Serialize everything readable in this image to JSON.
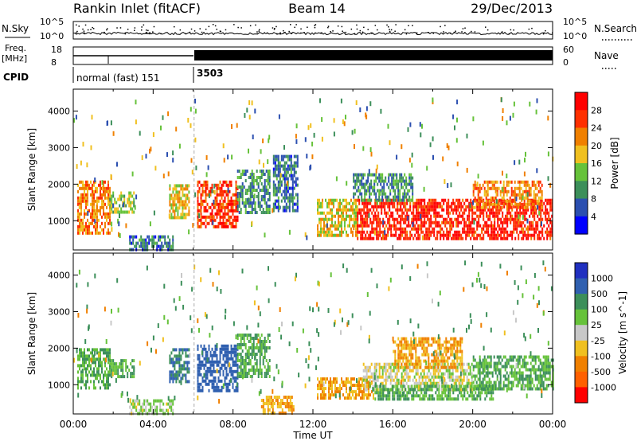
{
  "header": {
    "station": "Rankin Inlet (fitACF)",
    "beam": "Beam 14",
    "date": "29/Dec/2013"
  },
  "strip_panels": {
    "noise": {
      "left_label": "N.Sky",
      "right_label": "N.Search",
      "left_ticks": [
        "10^5",
        "10^0"
      ],
      "right_ticks": [
        "10^5",
        "10^0"
      ]
    },
    "frequency": {
      "left_label_line1": "Freq.",
      "left_label_line2": "[MHz]",
      "right_label": "Nave",
      "left_ticks": [
        "18",
        "8"
      ],
      "right_ticks": [
        "60",
        "0"
      ]
    },
    "cpid": {
      "label": "CPID",
      "modes": [
        {
          "name": "normal (fast) 151",
          "start_hour": 0,
          "end_hour": 6.05
        },
        {
          "name": "3503",
          "start_hour": 6.05,
          "end_hour": 24
        }
      ]
    }
  },
  "colors": {
    "power_scale": [
      "#0000ff",
      "#2b4fb0",
      "#3c8f5a",
      "#66c23a",
      "#f0c020",
      "#f08000",
      "#ff3000",
      "#ff0000"
    ],
    "velocity_scale": [
      "#2030c0",
      "#3060b0",
      "#3c8f5a",
      "#66c23a",
      "#c8c8c8",
      "#f0c020",
      "#f08000",
      "#ff6000",
      "#ff0000"
    ],
    "ground_scatter": "#c8c8c8"
  },
  "chart_data": [
    {
      "type": "heatmap",
      "panel": "power",
      "ylabel": "Slant Range [km]",
      "ylim": [
        200,
        4600
      ],
      "yticks": [
        "1000",
        "2000",
        "3000",
        "4000"
      ],
      "xlim": [
        0,
        24
      ],
      "colorbar": {
        "label": "Power [dB]",
        "range": [
          0,
          32
        ],
        "ticks": [
          "4",
          "8",
          "12",
          "16",
          "20",
          "24",
          "28"
        ]
      },
      "regions": [
        {
          "t0": 0.2,
          "t1": 1.8,
          "r0": 700,
          "r1": 2100,
          "value": 22
        },
        {
          "t0": 1.8,
          "t1": 3.0,
          "r0": 1200,
          "r1": 1800,
          "value": 14
        },
        {
          "t0": 2.8,
          "t1": 5.0,
          "r0": 250,
          "r1": 600,
          "value": 8
        },
        {
          "t0": 4.8,
          "t1": 5.8,
          "r0": 1100,
          "r1": 2000,
          "value": 18
        },
        {
          "t0": 6.2,
          "t1": 8.2,
          "r0": 800,
          "r1": 2100,
          "value": 26
        },
        {
          "t0": 8.2,
          "t1": 9.8,
          "r0": 1200,
          "r1": 2400,
          "value": 10
        },
        {
          "t0": 10.0,
          "t1": 11.2,
          "r0": 1300,
          "r1": 2800,
          "value": 8
        },
        {
          "t0": 12.2,
          "t1": 14.2,
          "r0": 600,
          "r1": 1600,
          "value": 18
        },
        {
          "t0": 14.2,
          "t1": 24.0,
          "r0": 500,
          "r1": 1600,
          "value": 28
        },
        {
          "t0": 14.0,
          "t1": 17.0,
          "r0": 1600,
          "r1": 2300,
          "value": 10
        },
        {
          "t0": 20.0,
          "t1": 23.5,
          "r0": 1400,
          "r1": 2100,
          "value": 22
        }
      ]
    },
    {
      "type": "heatmap",
      "panel": "velocity",
      "ylabel": "Slant Range [km]",
      "xlabel": "Time UT",
      "ylim": [
        200,
        4600
      ],
      "yticks": [
        "1000",
        "2000",
        "3000",
        "4000"
      ],
      "xlim": [
        0,
        24
      ],
      "xticks": [
        "00:00",
        "04:00",
        "08:00",
        "12:00",
        "16:00",
        "20:00",
        "00:00"
      ],
      "colorbar": {
        "label": "Velocity [m s^-1]",
        "ticks": [
          "1000",
          "500",
          "100",
          "25",
          "-25",
          "-100",
          "-500",
          "-1000"
        ]
      },
      "regions": [
        {
          "t0": 0.2,
          "t1": 1.8,
          "r0": 900,
          "r1": 2000,
          "value": 100
        },
        {
          "t0": 1.8,
          "t1": 3.0,
          "r0": 1200,
          "r1": 1700,
          "value": 100
        },
        {
          "t0": 2.8,
          "t1": 5.0,
          "r0": 250,
          "r1": 600,
          "value": 25
        },
        {
          "t0": 4.8,
          "t1": 5.8,
          "r0": 1100,
          "r1": 2000,
          "value": 500
        },
        {
          "t0": 6.2,
          "t1": 8.2,
          "r0": 800,
          "r1": 2100,
          "value": 800
        },
        {
          "t0": 8.2,
          "t1": 9.8,
          "r0": 1200,
          "r1": 2400,
          "value": 100
        },
        {
          "t0": 9.4,
          "t1": 11.0,
          "r0": 250,
          "r1": 700,
          "value": -100
        },
        {
          "t0": 12.2,
          "t1": 15.0,
          "r0": 600,
          "r1": 1200,
          "value": -100
        },
        {
          "t0": 14.5,
          "t1": 20.0,
          "r0": 900,
          "r1": 1600,
          "value": 0
        },
        {
          "t0": 15.0,
          "t1": 21.0,
          "r0": 600,
          "r1": 1000,
          "value": 100
        },
        {
          "t0": 20.0,
          "t1": 24.0,
          "r0": 900,
          "r1": 1800,
          "value": 100
        },
        {
          "t0": 16.0,
          "t1": 19.5,
          "r0": 1500,
          "r1": 2300,
          "value": -100
        }
      ]
    }
  ]
}
